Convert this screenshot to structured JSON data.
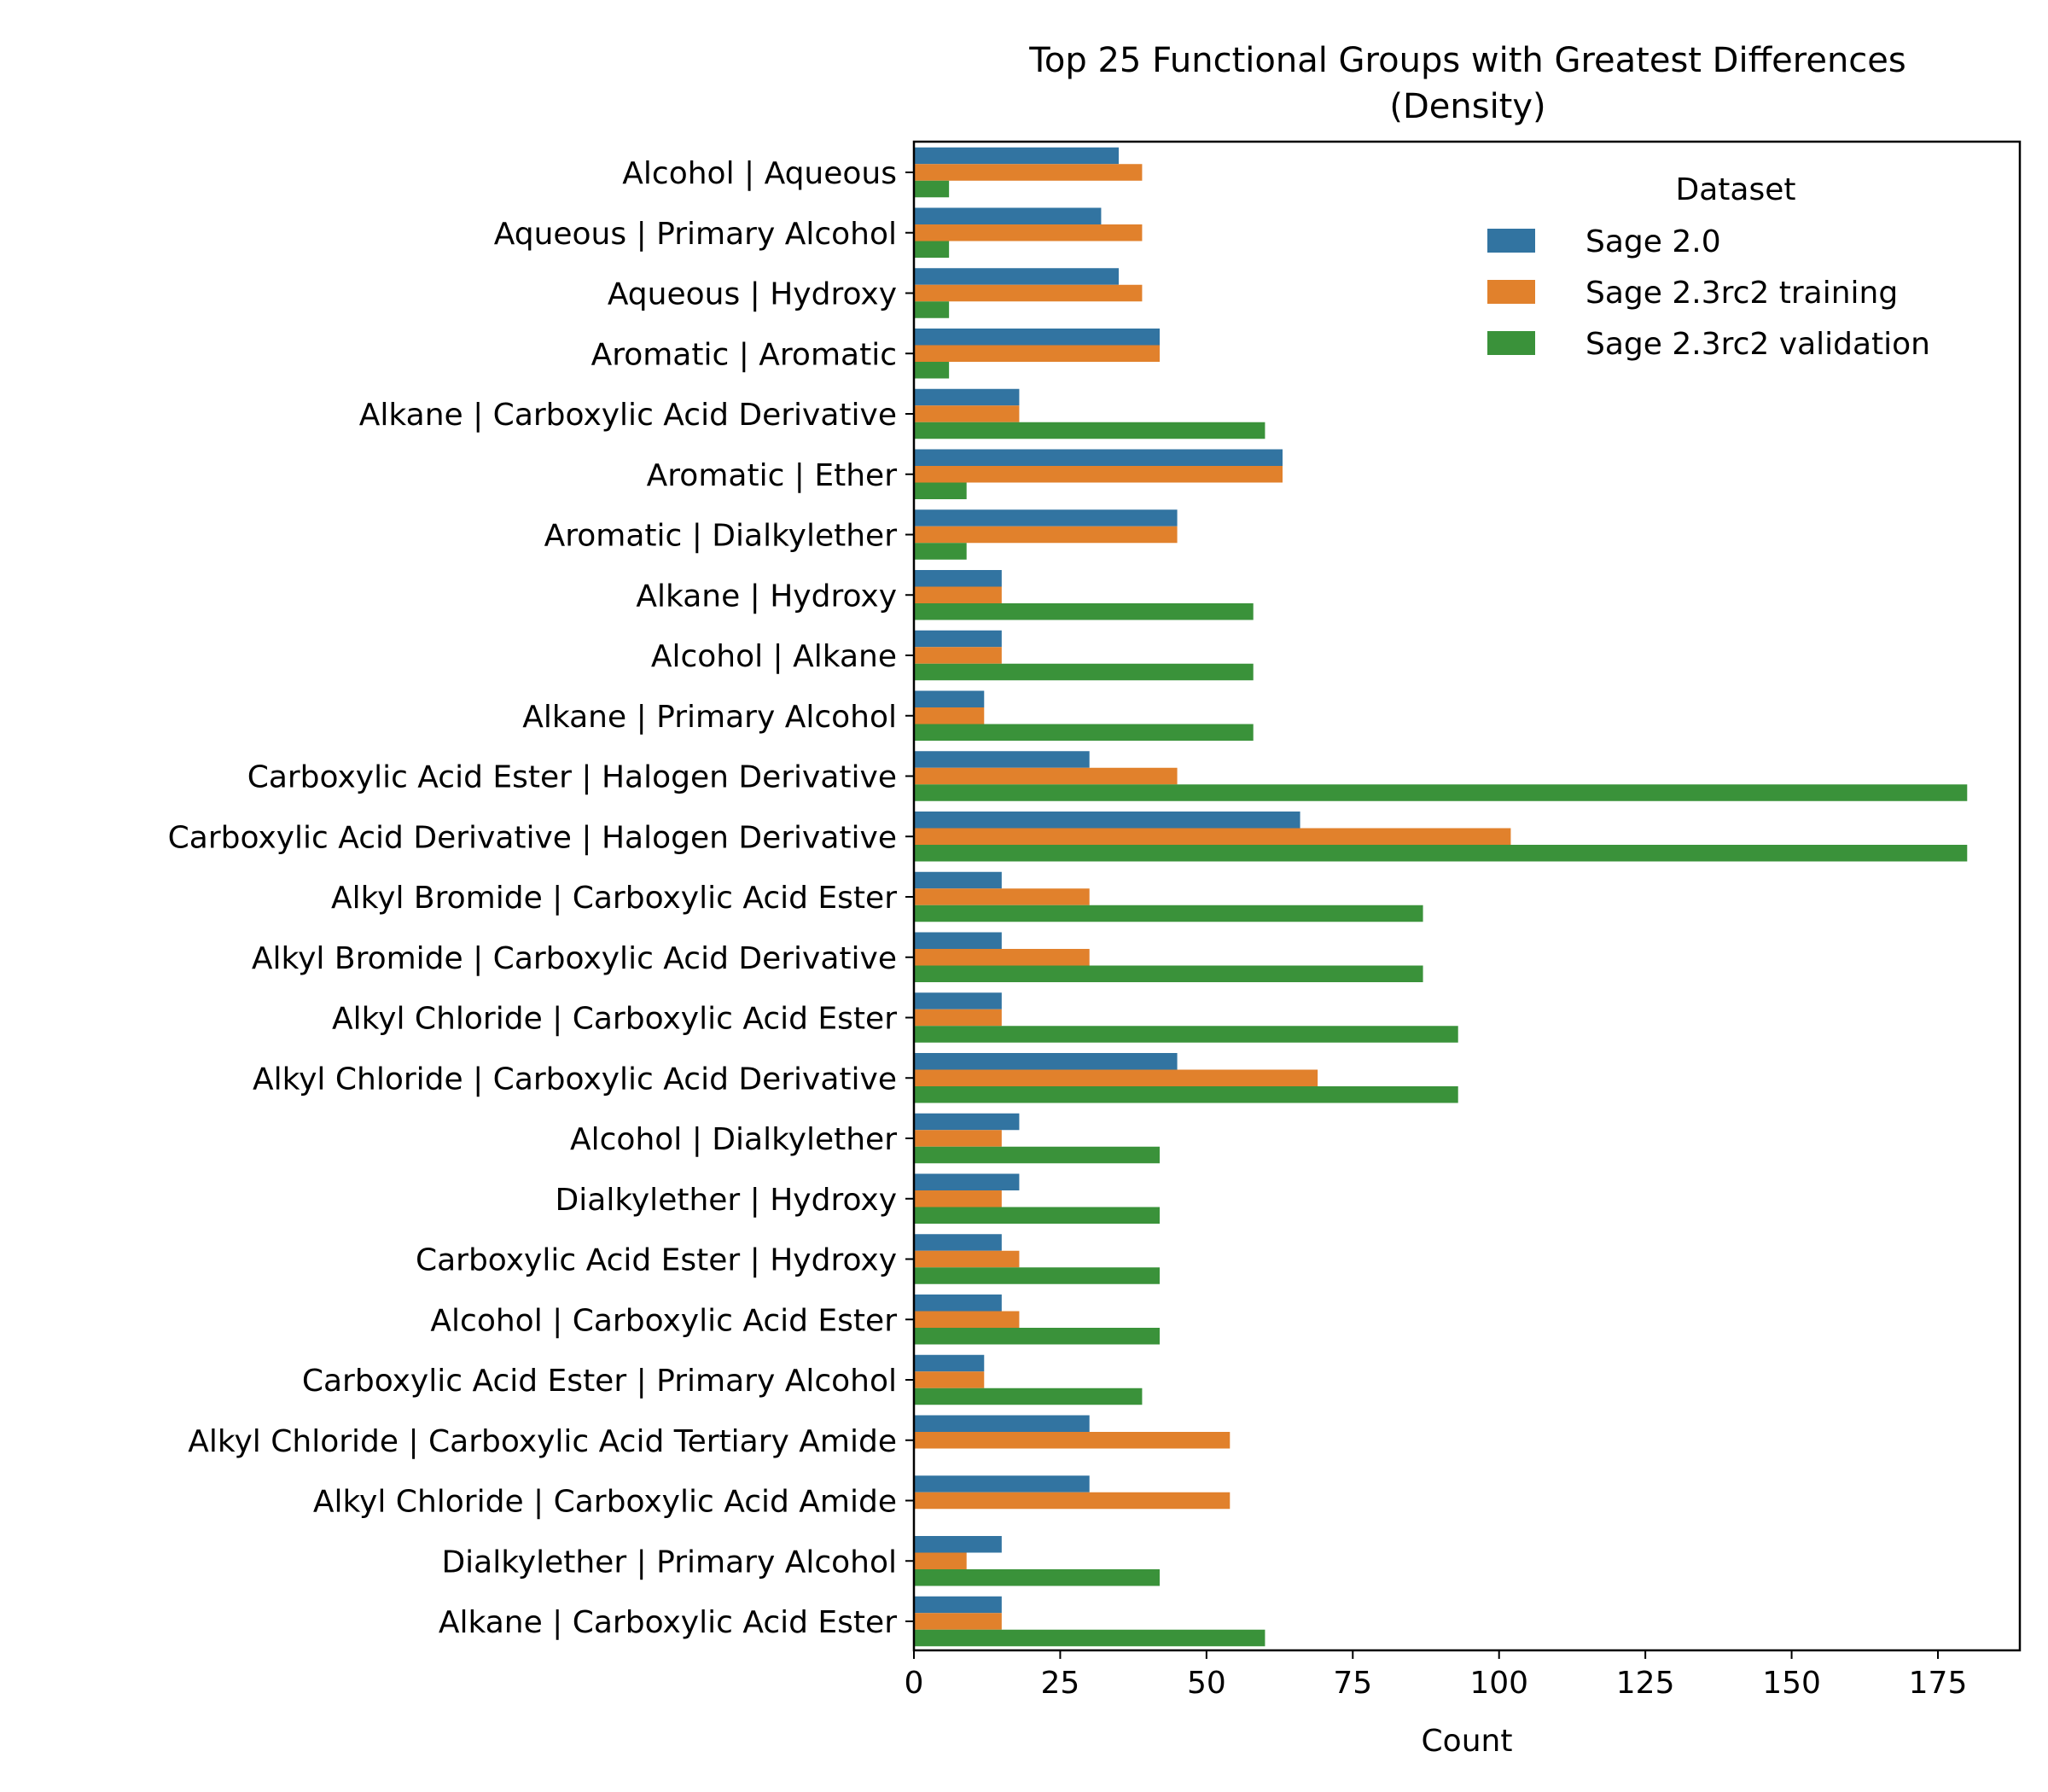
{
  "chart_data": {
    "type": "bar",
    "orientation": "horizontal",
    "title": "Top 25 Functional Groups with Greatest Differences",
    "subtitle": "(Density)",
    "xlabel": "Count",
    "ylabel": "",
    "xlim": [
      0,
      189
    ],
    "xticks": [
      0,
      25,
      50,
      75,
      100,
      125,
      150,
      175
    ],
    "grid": false,
    "legend": {
      "title": "Dataset",
      "placement": "upper-right"
    },
    "categories": [
      "Alcohol | Aqueous",
      "Aqueous | Primary Alcohol",
      "Aqueous | Hydroxy",
      "Aromatic | Aromatic",
      "Alkane | Carboxylic Acid Derivative",
      "Aromatic | Ether",
      "Aromatic | Dialkylether",
      "Alkane | Hydroxy",
      "Alcohol | Alkane",
      "Alkane | Primary Alcohol",
      "Carboxylic Acid Ester | Halogen Derivative",
      "Carboxylic Acid Derivative | Halogen Derivative",
      "Alkyl Bromide | Carboxylic Acid Ester",
      "Alkyl Bromide | Carboxylic Acid Derivative",
      "Alkyl Chloride | Carboxylic Acid Ester",
      "Alkyl Chloride | Carboxylic Acid Derivative",
      "Alcohol | Dialkylether",
      "Dialkylether | Hydroxy",
      "Carboxylic Acid Ester | Hydroxy",
      "Alcohol | Carboxylic Acid Ester",
      "Carboxylic Acid Ester | Primary Alcohol",
      "Alkyl Chloride | Carboxylic Acid Tertiary Amide",
      "Alkyl Chloride | Carboxylic Acid Amide",
      "Dialkylether | Primary Alcohol",
      "Alkane | Carboxylic Acid Ester"
    ],
    "series": [
      {
        "name": "Sage 2.0",
        "color": "#3274a1",
        "values": [
          35,
          32,
          35,
          42,
          18,
          63,
          45,
          15,
          15,
          12,
          30,
          66,
          15,
          15,
          15,
          45,
          18,
          18,
          15,
          15,
          12,
          30,
          30,
          15,
          15
        ]
      },
      {
        "name": "Sage 2.3rc2 training",
        "color": "#e1812c",
        "values": [
          39,
          39,
          39,
          42,
          18,
          63,
          45,
          15,
          15,
          12,
          45,
          102,
          30,
          30,
          15,
          69,
          15,
          15,
          18,
          18,
          12,
          54,
          54,
          9,
          15
        ]
      },
      {
        "name": "Sage 2.3rc2 validation",
        "color": "#3a923a",
        "values": [
          6,
          6,
          6,
          6,
          60,
          9,
          9,
          58,
          58,
          58,
          180,
          180,
          87,
          87,
          93,
          93,
          42,
          42,
          42,
          42,
          39,
          0,
          0,
          42,
          60
        ]
      }
    ]
  }
}
